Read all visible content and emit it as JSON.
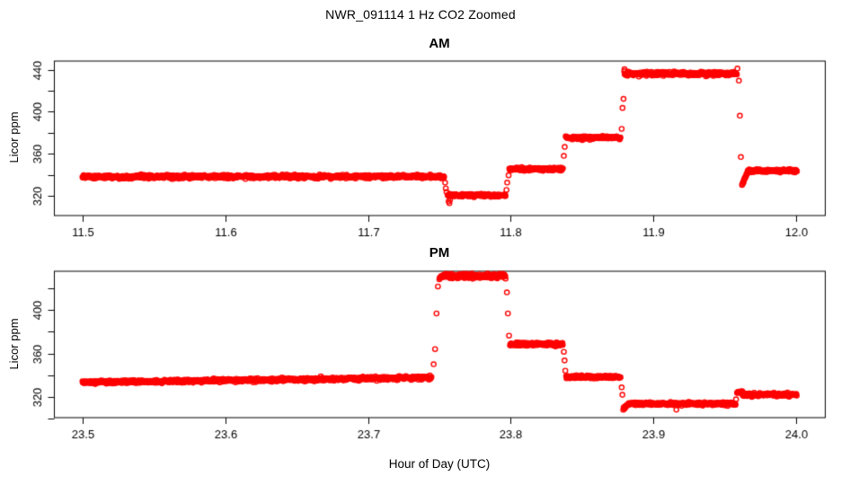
{
  "title": "NWR_091114  1 Hz CO2 Zoomed",
  "xlabel": "Hour of Day (UTC)",
  "point_color": "#FF0000",
  "axis_color": "#000000",
  "background_color": "#FFFFFF",
  "chart_data": [
    {
      "type": "scatter",
      "title": "AM",
      "ylabel": "Licor ppm",
      "xlabel": "",
      "marker": "open-circle",
      "sample_rate_hz": 1,
      "grid": false,
      "legend": "none",
      "xlim": [
        11.48,
        12.02
      ],
      "ylim": [
        301.5,
        448.8
      ],
      "xticks": [
        11.5,
        11.6,
        11.7,
        11.8,
        11.9,
        12.0
      ],
      "yticks": [
        320,
        340,
        360,
        380,
        400,
        420,
        440
      ],
      "ytick_labeled": [
        320,
        360,
        400,
        440
      ],
      "segments": [
        {
          "x0": 11.5,
          "x1": 11.7535,
          "y0": 338.0,
          "y1": 338.3,
          "noise": 0.8
        },
        {
          "x0": 11.7558,
          "x1": 11.7965,
          "y0": 320.4,
          "y1": 320.4,
          "noise": 0.7
        },
        {
          "x0": 11.799,
          "x1": 11.8365,
          "y0": 345.4,
          "y1": 345.4,
          "noise": 0.7
        },
        {
          "x0": 11.8385,
          "x1": 11.877,
          "y0": 375.4,
          "y1": 375.4,
          "noise": 0.7
        },
        {
          "x0": 11.8795,
          "x1": 11.9585,
          "y0": 436.2,
          "y1": 436.6,
          "noise": 0.9
        },
        {
          "x0": 11.962,
          "x1": 11.966,
          "y0": 330.0,
          "y1": 342.8,
          "noise": 0.6
        },
        {
          "x0": 11.966,
          "x1": 12.0005,
          "y0": 343.6,
          "y1": 343.9,
          "noise": 0.7
        }
      ],
      "extra_points": [
        [
          11.754,
          332.5
        ],
        [
          11.7545,
          327.0
        ],
        [
          11.755,
          323.5
        ],
        [
          11.7565,
          314.5
        ],
        [
          11.757,
          312.8
        ],
        [
          11.7575,
          316.0
        ],
        [
          11.797,
          325.5
        ],
        [
          11.7975,
          332.5
        ],
        [
          11.7985,
          339.5
        ],
        [
          11.8372,
          358.0
        ],
        [
          11.8378,
          366.5
        ],
        [
          11.8777,
          383.7
        ],
        [
          11.8783,
          403.7
        ],
        [
          11.879,
          412.3
        ],
        [
          11.8797,
          440.6
        ],
        [
          11.9588,
          441.2
        ],
        [
          11.9598,
          429.7
        ],
        [
          11.9605,
          396.3
        ],
        [
          11.9612,
          356.9
        ]
      ]
    },
    {
      "type": "scatter",
      "title": "PM",
      "ylabel": "Licor ppm",
      "xlabel": "Hour of Day (UTC)",
      "marker": "open-circle",
      "sample_rate_hz": 1,
      "grid": false,
      "legend": "none",
      "xlim": [
        23.48,
        24.02
      ],
      "ylim": [
        301.0,
        436.5
      ],
      "xticks": [
        23.5,
        23.6,
        23.7,
        23.8,
        23.9,
        24.0
      ],
      "yticks": [
        300,
        320,
        340,
        360,
        380,
        400,
        420
      ],
      "ytick_labeled": [
        320,
        360,
        400
      ],
      "segments": [
        {
          "x0": 23.5,
          "x1": 23.7445,
          "y0": 333.2,
          "y1": 337.6,
          "noise": 0.8
        },
        {
          "x0": 23.75,
          "x1": 23.7965,
          "y0": 431.2,
          "y1": 431.8,
          "noise": 1.1
        },
        {
          "x0": 23.7995,
          "x1": 23.8365,
          "y0": 368.6,
          "y1": 368.6,
          "noise": 0.8
        },
        {
          "x0": 23.8388,
          "x1": 23.877,
          "y0": 338.3,
          "y1": 338.3,
          "noise": 0.7
        },
        {
          "x0": 23.8788,
          "x1": 23.8822,
          "y0": 308.5,
          "y1": 313.0,
          "noise": 0.6
        },
        {
          "x0": 23.8822,
          "x1": 23.9575,
          "y0": 313.4,
          "y1": 313.4,
          "noise": 0.7
        },
        {
          "x0": 23.9585,
          "x1": 23.9625,
          "y0": 324.0,
          "y1": 324.0,
          "noise": 0.6
        },
        {
          "x0": 23.9625,
          "x1": 24.0005,
          "y0": 321.7,
          "y1": 321.7,
          "noise": 0.7
        }
      ],
      "extra_points": [
        [
          23.746,
          350.0
        ],
        [
          23.747,
          364.0
        ],
        [
          23.748,
          397.0
        ],
        [
          23.749,
          422.0
        ],
        [
          23.7973,
          416.5
        ],
        [
          23.798,
          397.0
        ],
        [
          23.7988,
          376.5
        ],
        [
          23.8372,
          361.5
        ],
        [
          23.8377,
          353.5
        ],
        [
          23.8382,
          344.0
        ],
        [
          23.8777,
          328.6
        ],
        [
          23.8782,
          321.7
        ],
        [
          23.916,
          308.0
        ],
        [
          23.9578,
          317.5
        ]
      ]
    }
  ]
}
